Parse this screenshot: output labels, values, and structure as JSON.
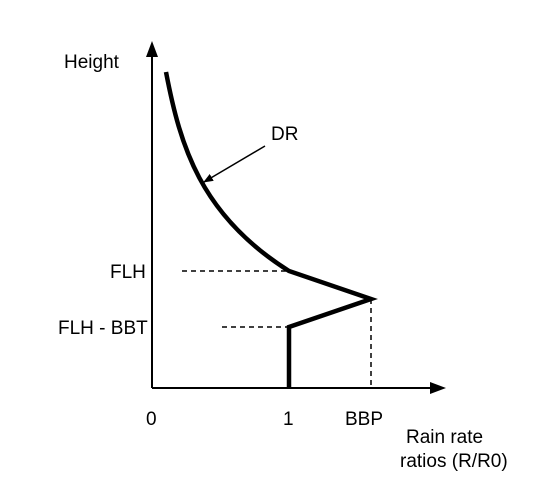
{
  "diagram": {
    "y_axis_label": "Height",
    "x_axis_label_line1": "Rain rate",
    "x_axis_label_line2": "ratios (R/R0)",
    "x_ticks": {
      "zero": "0",
      "one": "1",
      "bbp": "BBP"
    },
    "y_ticks": {
      "flh": "FLH",
      "flh_bbt": "FLH - BBT"
    },
    "curve_label": "DR",
    "colors": {
      "line": "#000000",
      "background": "#ffffff"
    }
  }
}
